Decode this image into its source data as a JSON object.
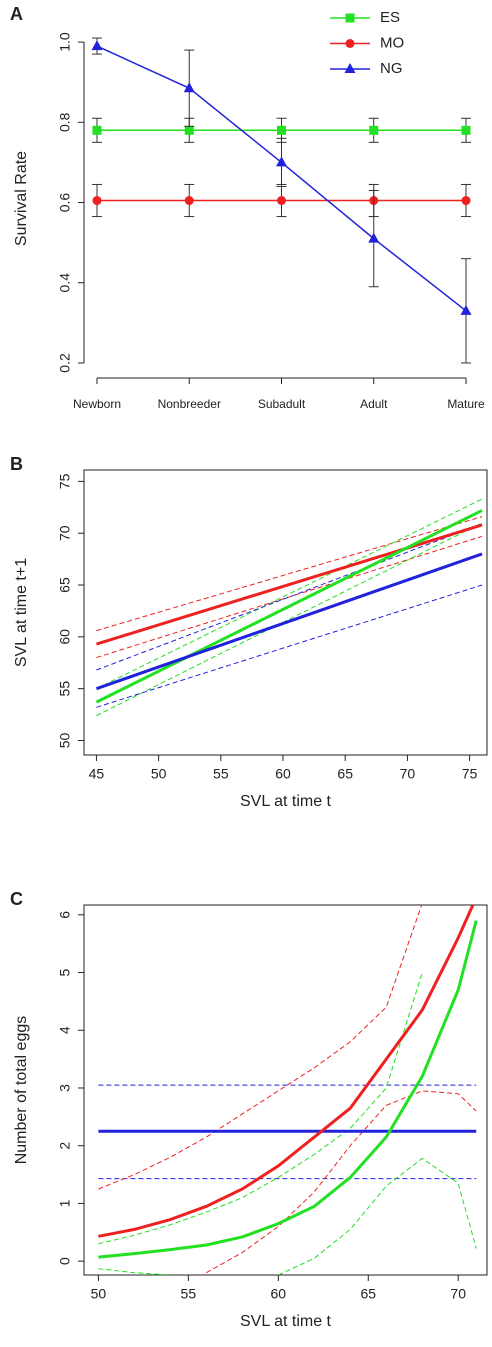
{
  "chart_data": [
    {
      "type": "line",
      "panel_label": "A",
      "ylabel": "Survival Rate",
      "categories": [
        "Newborn",
        "Nonbreeder",
        "Subadult",
        "Adult",
        "Mature"
      ],
      "ylim": [
        0.17,
        1.05
      ],
      "yticks": [
        0.2,
        0.4,
        0.6,
        0.8,
        {
          "value": 1,
          "label": "1.0"
        }
      ],
      "legend": "top-right",
      "series": [
        {
          "name": "ES",
          "color": "#22e022",
          "marker": "square",
          "values": [
            0.78,
            0.78,
            0.78,
            0.78,
            0.78
          ],
          "errors": [
            0.03,
            0.03,
            0.03,
            0.03,
            0.03
          ]
        },
        {
          "name": "MO",
          "color": "#ee2020",
          "marker": "circle",
          "values": [
            0.605,
            0.605,
            0.605,
            0.605,
            0.605
          ],
          "errors": [
            0.04,
            0.04,
            0.04,
            0.04,
            0.04
          ]
        },
        {
          "name": "NG",
          "color": "#2222dd",
          "marker": "triangle",
          "values": [
            0.99,
            0.885,
            0.7,
            0.51,
            0.33
          ],
          "errors": [
            0.02,
            0.095,
            0.06,
            0.12,
            0.13
          ]
        }
      ]
    },
    {
      "type": "line",
      "panel_label": "B",
      "xlabel": "SVL at time t",
      "ylabel": "SVL at time t+1",
      "xlim": [
        44,
        76.4
      ],
      "ylim": [
        48.6,
        76.1
      ],
      "xticks": [
        45,
        50,
        55,
        60,
        65,
        70,
        75
      ],
      "yticks": [
        50,
        55,
        60,
        65,
        70,
        75
      ],
      "series": [
        {
          "color": "#ee2020",
          "style": "dashed",
          "x": [
            45,
            76
          ],
          "values": [
            60.6,
            71.6
          ]
        },
        {
          "color": "#ee2020",
          "style": "dashed",
          "x": [
            45,
            76
          ],
          "values": [
            58.0,
            69.7
          ]
        },
        {
          "color": "#22e022",
          "style": "dashed",
          "x": [
            45,
            76
          ],
          "values": [
            55.0,
            73.3
          ]
        },
        {
          "color": "#22e022",
          "style": "dashed",
          "x": [
            45,
            76
          ],
          "values": [
            52.4,
            71.0
          ]
        },
        {
          "color": "#2222dd",
          "style": "dashed",
          "x": [
            45,
            76
          ],
          "values": [
            56.8,
            70.9
          ]
        },
        {
          "color": "#2222dd",
          "style": "dashed",
          "x": [
            45,
            76
          ],
          "values": [
            53.2,
            65.0
          ]
        },
        {
          "color": "#ee2020",
          "style": "solid",
          "x": [
            45,
            76
          ],
          "values": [
            59.3,
            70.8
          ]
        },
        {
          "color": "#22e022",
          "style": "solid",
          "x": [
            45,
            76
          ],
          "values": [
            53.7,
            72.2
          ]
        },
        {
          "color": "#2222dd",
          "style": "solid",
          "x": [
            45,
            76
          ],
          "values": [
            55.0,
            68.0
          ]
        }
      ]
    },
    {
      "type": "line",
      "panel_label": "C",
      "xlabel": "SVL at time t",
      "ylabel": "Number of total eggs",
      "xlim": [
        49.2,
        71.6
      ],
      "ylim": [
        -0.24,
        6.17
      ],
      "xticks": [
        50,
        55,
        60,
        65,
        70
      ],
      "yticks": [
        0,
        1,
        2,
        3,
        4,
        5,
        6
      ],
      "series": [
        {
          "color": "#2222dd",
          "style": "dashed",
          "x": [
            50,
            71
          ],
          "values": [
            3.05,
            3.05
          ]
        },
        {
          "color": "#2222dd",
          "style": "dashed",
          "x": [
            50,
            71
          ],
          "values": [
            1.43,
            1.43
          ]
        },
        {
          "color": "#ee2020",
          "style": "dashed",
          "x": [
            50,
            52,
            54,
            56,
            58,
            60,
            62,
            64,
            66,
            68,
            70,
            71
          ],
          "values": [
            1.25,
            1.5,
            1.8,
            2.15,
            2.55,
            2.95,
            3.35,
            3.8,
            4.4,
            6.2,
            null,
            null
          ]
        },
        {
          "color": "#ee2020",
          "style": "dashed",
          "x": [
            50,
            52,
            54,
            56,
            58,
            60,
            62,
            64,
            66,
            68,
            70,
            71
          ],
          "values": [
            null,
            null,
            null,
            -0.2,
            0.15,
            0.6,
            1.2,
            2.0,
            2.7,
            2.95,
            2.9,
            2.6
          ]
        },
        {
          "color": "#22e022",
          "style": "dashed",
          "x": [
            50,
            52,
            54,
            56,
            58,
            60,
            62,
            64,
            66,
            68,
            70,
            71
          ],
          "values": [
            0.3,
            0.45,
            0.63,
            0.85,
            1.1,
            1.45,
            1.85,
            2.3,
            3.0,
            5.0,
            null,
            null
          ]
        },
        {
          "color": "#22e022",
          "style": "dashed",
          "x": [
            50,
            52,
            54,
            56,
            58,
            60,
            62,
            64,
            66,
            68,
            70,
            71
          ],
          "values": [
            -0.13,
            -0.2,
            -0.24,
            null,
            null,
            -0.24,
            0.05,
            0.55,
            1.3,
            1.78,
            1.35,
            0.22
          ]
        },
        {
          "color": "#2222dd",
          "style": "solid",
          "x": [
            50,
            71
          ],
          "values": [
            2.25,
            2.25
          ]
        },
        {
          "color": "#ee2020",
          "style": "solid",
          "x": [
            50,
            52,
            54,
            56,
            58,
            60,
            62,
            64,
            66,
            68,
            70,
            71
          ],
          "values": [
            0.43,
            0.55,
            0.72,
            0.95,
            1.25,
            1.65,
            2.15,
            2.65,
            3.5,
            4.35,
            5.6,
            6.3
          ]
        },
        {
          "color": "#22e022",
          "style": "solid",
          "x": [
            50,
            52,
            54,
            56,
            58,
            60,
            62,
            64,
            66,
            68,
            70,
            71
          ],
          "values": [
            0.07,
            0.13,
            0.2,
            0.28,
            0.42,
            0.65,
            0.95,
            1.45,
            2.15,
            3.2,
            4.7,
            5.9
          ]
        }
      ]
    }
  ]
}
